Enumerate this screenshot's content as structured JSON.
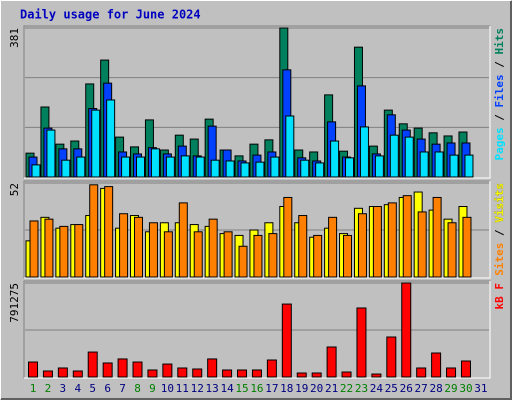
{
  "chart_data": {
    "type": "bar",
    "title": "Daily usage for June 2024",
    "categories": [
      "1",
      "2",
      "3",
      "4",
      "5",
      "6",
      "7",
      "8",
      "9",
      "10",
      "11",
      "12",
      "13",
      "14",
      "15",
      "16",
      "17",
      "18",
      "19",
      "20",
      "21",
      "22",
      "23",
      "24",
      "25",
      "26",
      "27",
      "28",
      "29",
      "30",
      "31"
    ],
    "category_colors": [
      "#008000",
      "#008000",
      "#000080",
      "#000080",
      "#000080",
      "#000080",
      "#000080",
      "#008000",
      "#008000",
      "#000080",
      "#000080",
      "#000080",
      "#000080",
      "#000080",
      "#008000",
      "#008000",
      "#000080",
      "#000080",
      "#000080",
      "#000080",
      "#000080",
      "#008000",
      "#008000",
      "#000080",
      "#000080",
      "#000080",
      "#000080",
      "#000080",
      "#008000",
      "#008000",
      "#000080"
    ],
    "panels": [
      {
        "ylim": [
          0,
          381
        ],
        "yticks": [
          381
        ],
        "grid": 3,
        "series": [
          {
            "name": "Hits",
            "color": "#00805c",
            "values": [
              61,
              179,
              84,
              92,
              238,
              299,
              102,
              77,
              146,
              69,
              107,
              97,
              148,
              69,
              54,
              84,
              95,
              381,
              69,
              64,
              210,
              66,
              332,
              79,
              171,
              136,
              125,
              113,
              105,
              115,
              0
            ]
          },
          {
            "name": "Files",
            "color": "#0040ff",
            "values": [
              51,
              125,
              72,
              72,
              175,
              240,
              64,
              59,
              75,
              59,
              79,
              54,
              130,
              69,
              41,
              56,
              64,
              274,
              49,
              41,
              141,
              51,
              233,
              59,
              159,
              120,
              97,
              84,
              87,
              87,
              0
            ]
          },
          {
            "name": "Pages",
            "color": "#00e0ff",
            "values": [
              31,
              120,
              43,
              51,
              171,
              197,
              51,
              51,
              72,
              51,
              54,
              51,
              43,
              41,
              36,
              38,
              51,
              156,
              43,
              36,
              92,
              49,
              128,
              54,
              107,
              102,
              64,
              64,
              56,
              56,
              0
            ]
          }
        ]
      },
      {
        "ylim": [
          0,
          52
        ],
        "yticks": [
          52
        ],
        "grid": 2,
        "series": [
          {
            "name": "Visits",
            "color": "#ffff00",
            "values": [
              20,
              33,
              27,
              29,
              34,
              49,
              27,
              34,
              25,
              30,
              30,
              29,
              28,
              24,
              23,
              26,
              30,
              39,
              30,
              22,
              27,
              24,
              38,
              39,
              40,
              44,
              47,
              37,
              32,
              39,
              0
            ]
          },
          {
            "name": "Sites",
            "color": "#ff8000",
            "values": [
              31,
              32,
              28,
              29,
              51,
              50,
              35,
              33,
              30,
              25,
              41,
              25,
              32,
              25,
              17,
              23,
              24,
              44,
              34,
              23,
              33,
              23,
              35,
              39,
              41,
              45,
              36,
              44,
              30,
              33,
              0
            ]
          }
        ]
      },
      {
        "ylim": [
          0,
          791275
        ],
        "yticks": [
          791275
        ],
        "grid": 2,
        "series": [
          {
            "name": "kB F",
            "color": "#ff0000",
            "values": [
              126000,
              50500,
              75800,
              50500,
              210000,
              118000,
              152000,
              126000,
              59000,
              109000,
              75800,
              67300,
              152000,
              59000,
              59000,
              59000,
              143000,
              614000,
              33700,
              33700,
              252500,
              42000,
              581000,
              25000,
              336700,
              791275,
              75800,
              202000,
              75800,
              134700,
              0
            ]
          }
        ]
      }
    ]
  }
}
